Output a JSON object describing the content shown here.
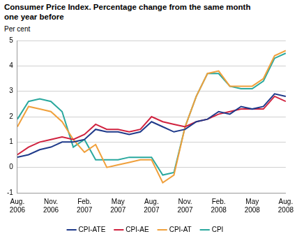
{
  "chart_data": {
    "type": "line",
    "title": "Consumer Price Index. Percentage change from the same month one year before",
    "y_label": "Per cent",
    "categories": [
      "Aug. 2006",
      null,
      null,
      "Nov. 2006",
      null,
      null,
      "Feb. 2007",
      null,
      null,
      "May 2007",
      null,
      null,
      "Aug. 2007",
      null,
      null,
      "Nov. 2007",
      null,
      null,
      "Feb. 2008",
      null,
      null,
      "May 2008",
      null,
      null,
      "Aug. 2008"
    ],
    "series": [
      {
        "name": "CPI-ATE",
        "color": "#1f3a8a",
        "values": [
          0.4,
          0.5,
          0.7,
          0.8,
          1.0,
          1.0,
          1.1,
          1.5,
          1.4,
          1.4,
          1.3,
          1.4,
          1.8,
          1.6,
          1.4,
          1.5,
          1.8,
          1.9,
          2.2,
          2.1,
          2.4,
          2.3,
          2.4,
          2.9,
          2.8
        ]
      },
      {
        "name": "CPI-AE",
        "color": "#d0223f",
        "values": [
          0.5,
          0.8,
          1.0,
          1.1,
          1.2,
          1.1,
          1.3,
          1.7,
          1.5,
          1.5,
          1.4,
          1.5,
          2.0,
          1.8,
          1.7,
          1.6,
          1.8,
          1.9,
          2.1,
          2.2,
          2.3,
          2.3,
          2.3,
          2.8,
          2.6
        ]
      },
      {
        "name": "CPI-AT",
        "color": "#f0a03c",
        "values": [
          1.6,
          2.4,
          2.3,
          2.2,
          1.8,
          1.1,
          0.6,
          0.9,
          0.0,
          0.1,
          0.2,
          0.3,
          0.3,
          -0.6,
          -0.3,
          1.6,
          2.8,
          3.7,
          3.8,
          3.2,
          3.2,
          3.2,
          3.5,
          4.4,
          4.6
        ]
      },
      {
        "name": "CPI",
        "color": "#2aa89e",
        "values": [
          1.9,
          2.6,
          2.7,
          2.6,
          2.2,
          0.8,
          1.1,
          0.3,
          0.3,
          0.3,
          0.4,
          0.4,
          0.4,
          -0.3,
          -0.2,
          1.6,
          2.8,
          3.7,
          3.7,
          3.2,
          3.1,
          3.1,
          3.4,
          4.3,
          4.5
        ]
      }
    ],
    "ylim": [
      -1,
      5
    ],
    "yticks": [
      -1,
      0,
      1,
      2,
      3,
      4,
      5
    ],
    "grid": true,
    "legend": "bottom"
  }
}
